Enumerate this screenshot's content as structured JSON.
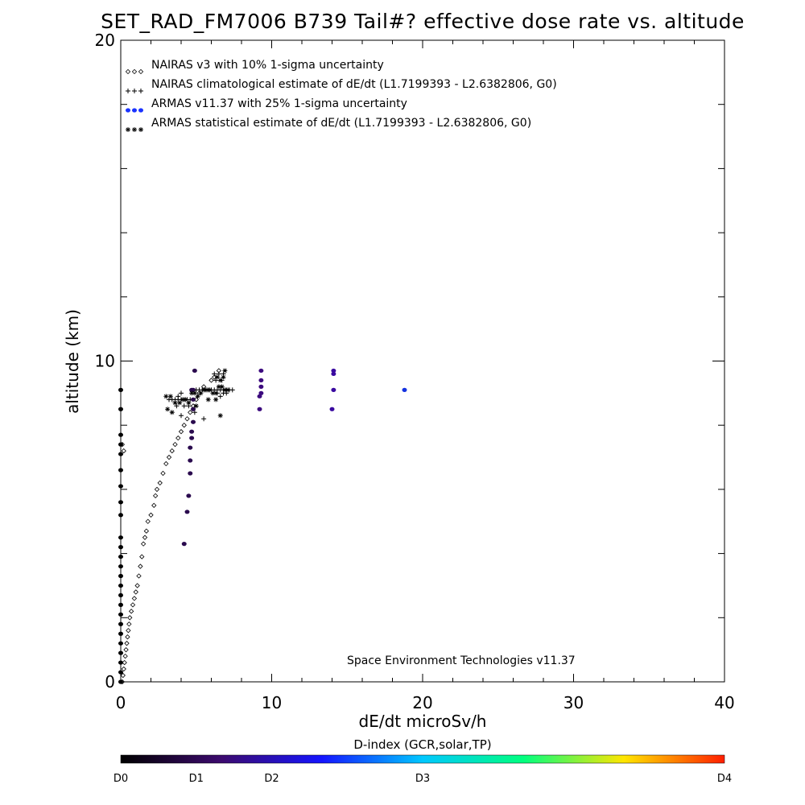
{
  "title": "SET_RAD_FM7006  B739 Tail#? effective dose rate vs. altitude",
  "credit": "Space Environment Technologies v11.37",
  "colorbar": {
    "title": "D-index (GCR,solar,TP)",
    "labels": [
      "D0",
      "D1",
      "D2",
      "D3",
      "D4"
    ],
    "label_positions": [
      0,
      0.125,
      0.25,
      0.5,
      1.0
    ],
    "stops": [
      "#000000",
      "#3c0a6e",
      "#1414ff",
      "#00c8ff",
      "#00ff7f",
      "#ffe600",
      "#ff1e00"
    ]
  },
  "chart_data": {
    "type": "scatter",
    "xlabel": "dE/dt microSv/h",
    "ylabel": "altitude (km)",
    "xlim": [
      0,
      40
    ],
    "ylim": [
      0,
      20
    ],
    "x_ticks": [
      "0",
      "10",
      "20",
      "30",
      "40"
    ],
    "y_ticks": [
      "0",
      "10",
      "20"
    ],
    "legend_position": "top-left",
    "series": [
      {
        "name": "NAIRAS v3 with 10% 1-sigma uncertainty",
        "marker": "diamond",
        "color": "#000000",
        "points": [
          [
            0.1,
            0.0
          ],
          [
            0.15,
            0.2
          ],
          [
            0.2,
            0.4
          ],
          [
            0.25,
            0.6
          ],
          [
            0.3,
            0.8
          ],
          [
            0.35,
            1.0
          ],
          [
            0.4,
            1.2
          ],
          [
            0.45,
            1.4
          ],
          [
            0.5,
            1.6
          ],
          [
            0.55,
            1.8
          ],
          [
            0.6,
            2.0
          ],
          [
            0.7,
            2.2
          ],
          [
            0.8,
            2.4
          ],
          [
            0.9,
            2.6
          ],
          [
            1.0,
            2.8
          ],
          [
            1.1,
            3.0
          ],
          [
            1.2,
            3.3
          ],
          [
            1.3,
            3.6
          ],
          [
            1.4,
            3.9
          ],
          [
            1.5,
            4.3
          ],
          [
            1.6,
            4.5
          ],
          [
            1.7,
            4.7
          ],
          [
            1.8,
            5.0
          ],
          [
            2.0,
            5.2
          ],
          [
            2.2,
            5.5
          ],
          [
            2.3,
            5.8
          ],
          [
            2.4,
            6.0
          ],
          [
            2.6,
            6.2
          ],
          [
            2.8,
            6.5
          ],
          [
            3.0,
            6.8
          ],
          [
            3.2,
            7.0
          ],
          [
            3.4,
            7.2
          ],
          [
            3.6,
            7.4
          ],
          [
            3.8,
            7.6
          ],
          [
            4.0,
            7.8
          ],
          [
            4.2,
            8.0
          ],
          [
            4.4,
            8.2
          ],
          [
            4.6,
            8.4
          ],
          [
            4.8,
            8.6
          ],
          [
            5.0,
            8.8
          ],
          [
            5.2,
            9.0
          ],
          [
            5.5,
            9.2
          ],
          [
            6.0,
            9.4
          ],
          [
            6.2,
            9.5
          ],
          [
            6.5,
            9.7
          ],
          [
            0.1,
            7.4
          ],
          [
            0.2,
            7.2
          ]
        ]
      },
      {
        "name": "NAIRAS climatological estimate of dE/dt (L1.7199393 - L2.6382806, G0)",
        "marker": "plus",
        "color": "#000000",
        "points": [
          [
            3.2,
            8.8
          ],
          [
            3.4,
            8.8
          ],
          [
            3.6,
            8.8
          ],
          [
            3.8,
            8.8
          ],
          [
            4.0,
            8.8
          ],
          [
            4.2,
            8.8
          ],
          [
            4.4,
            8.8
          ],
          [
            4.6,
            8.8
          ],
          [
            4.0,
            8.3
          ],
          [
            3.7,
            8.6
          ],
          [
            4.0,
            9.0
          ],
          [
            4.5,
            8.6
          ],
          [
            5.0,
            9.1
          ],
          [
            5.2,
            9.1
          ],
          [
            5.4,
            9.1
          ],
          [
            5.6,
            9.1
          ],
          [
            5.8,
            9.1
          ],
          [
            6.0,
            9.1
          ],
          [
            6.2,
            9.1
          ],
          [
            6.4,
            9.1
          ],
          [
            6.6,
            9.1
          ],
          [
            6.8,
            9.1
          ],
          [
            7.0,
            9.1
          ],
          [
            7.2,
            9.1
          ],
          [
            7.4,
            9.1
          ],
          [
            6.4,
            9.0
          ],
          [
            6.6,
            8.9
          ],
          [
            6.8,
            9.0
          ],
          [
            7.0,
            9.0
          ],
          [
            6.2,
            9.6
          ],
          [
            6.5,
            9.6
          ],
          [
            6.8,
            9.6
          ],
          [
            6.3,
            9.4
          ],
          [
            6.7,
            9.4
          ],
          [
            4.9,
            8.4
          ],
          [
            5.5,
            8.2
          ],
          [
            4.2,
            8.6
          ],
          [
            3.8,
            8.9
          ]
        ]
      },
      {
        "name": "ARMAS v11.37 with 25% 1-sigma uncertainty",
        "marker": "dot",
        "color": "#1a33ff",
        "points": [
          [
            0.0,
            0.0
          ],
          [
            0.0,
            0.3
          ],
          [
            0.0,
            0.6
          ],
          [
            0.0,
            0.9
          ],
          [
            0.0,
            1.2
          ],
          [
            0.0,
            1.5
          ],
          [
            0.0,
            1.8
          ],
          [
            0.0,
            2.1
          ],
          [
            0.0,
            2.4
          ],
          [
            0.0,
            2.7
          ],
          [
            0.0,
            3.0
          ],
          [
            0.0,
            3.3
          ],
          [
            0.0,
            3.6
          ],
          [
            0.0,
            3.9
          ],
          [
            0.0,
            4.2
          ],
          [
            0.0,
            4.5
          ],
          [
            0.0,
            5.2
          ],
          [
            0.0,
            5.6
          ],
          [
            0.0,
            6.1
          ],
          [
            0.0,
            6.6
          ],
          [
            0.0,
            7.1
          ],
          [
            0.0,
            7.4
          ],
          [
            0.0,
            7.7
          ],
          [
            0.0,
            8.5
          ],
          [
            0.0,
            9.1
          ],
          [
            4.2,
            4.3
          ],
          [
            4.4,
            5.3
          ],
          [
            4.5,
            5.8
          ],
          [
            4.6,
            6.5
          ],
          [
            4.6,
            6.9
          ],
          [
            4.6,
            7.3
          ],
          [
            4.7,
            7.6
          ],
          [
            4.7,
            7.8
          ],
          [
            4.8,
            8.1
          ],
          [
            4.8,
            8.5
          ],
          [
            4.8,
            8.8
          ],
          [
            4.8,
            9.1
          ],
          [
            4.9,
            9.7
          ],
          [
            4.7,
            9.1
          ],
          [
            9.2,
            8.5
          ],
          [
            9.2,
            8.9
          ],
          [
            9.3,
            9.0
          ],
          [
            9.3,
            9.2
          ],
          [
            9.3,
            9.4
          ],
          [
            9.3,
            9.7
          ],
          [
            14.0,
            8.5
          ],
          [
            14.1,
            9.1
          ],
          [
            14.1,
            9.6
          ],
          [
            14.1,
            9.7
          ],
          [
            18.8,
            9.1
          ]
        ],
        "colors": [
          "#000000",
          "#000000",
          "#000000",
          "#000000",
          "#000000",
          "#000000",
          "#000000",
          "#000000",
          "#000000",
          "#000000",
          "#000000",
          "#000000",
          "#000000",
          "#000000",
          "#000000",
          "#000000",
          "#000000",
          "#000000",
          "#000000",
          "#000000",
          "#000000",
          "#000000",
          "#000000",
          "#000000",
          "#000000",
          "#2a0a4e",
          "#2a0a4e",
          "#2a0a4e",
          "#2a0a4e",
          "#2a0a4e",
          "#2a0a4e",
          "#2a0a4e",
          "#2a0a4e",
          "#2a0a4e",
          "#2a0a4e",
          "#2a0a4e",
          "#2a0a4e",
          "#2a0a4e",
          "#2a0a4e",
          "#3c0a7e",
          "#3c0a7e",
          "#3c0a7e",
          "#3c0a7e",
          "#3c0a7e",
          "#3c0a7e",
          "#3a0aa0",
          "#3a0aa0",
          "#3a0aa0",
          "#3a0aa0",
          "#1533e0"
        ]
      },
      {
        "name": "ARMAS statistical estimate of dE/dt (L1.7199393 - L2.6382806, G0)",
        "marker": "asterisk",
        "color": "#000000",
        "points": [
          [
            3.0,
            8.9
          ],
          [
            3.3,
            8.9
          ],
          [
            3.1,
            8.5
          ],
          [
            3.6,
            8.7
          ],
          [
            3.9,
            8.7
          ],
          [
            4.1,
            8.8
          ],
          [
            4.3,
            8.8
          ],
          [
            4.5,
            8.7
          ],
          [
            4.7,
            9.0
          ],
          [
            4.9,
            9.0
          ],
          [
            5.1,
            8.9
          ],
          [
            5.3,
            9.0
          ],
          [
            5.5,
            9.1
          ],
          [
            5.7,
            9.1
          ],
          [
            5.9,
            9.1
          ],
          [
            6.1,
            9.0
          ],
          [
            6.3,
            9.0
          ],
          [
            6.5,
            9.2
          ],
          [
            6.7,
            9.2
          ],
          [
            6.9,
            9.1
          ],
          [
            7.1,
            9.1
          ],
          [
            6.6,
            9.4
          ],
          [
            6.8,
            9.5
          ],
          [
            6.4,
            9.5
          ],
          [
            6.9,
            9.7
          ],
          [
            6.3,
            8.8
          ],
          [
            6.6,
            8.3
          ],
          [
            5.8,
            8.8
          ],
          [
            3.4,
            8.4
          ],
          [
            5.0,
            8.6
          ]
        ]
      }
    ]
  }
}
